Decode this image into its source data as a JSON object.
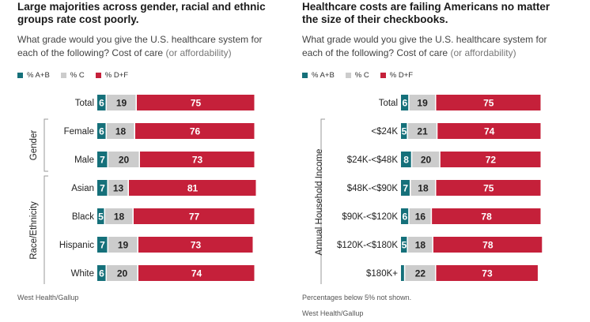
{
  "colors": {
    "ab": "#15707a",
    "c": "#cccccc",
    "df": "#c5203a"
  },
  "left": {
    "title": "Large majorities across gender, racial and ethnic groups rate cost poorly.",
    "subtitle_main": "What grade would you give the U.S. healthcare system for each of the following? Cost of care",
    "subtitle_paren": "(or affordability)",
    "legend": [
      {
        "label": "% A+B",
        "color": "#15707a"
      },
      {
        "label": "% C",
        "color": "#cccccc"
      },
      {
        "label": "% D+F",
        "color": "#c5203a"
      }
    ],
    "source": "West Health/Gallup"
  },
  "right": {
    "title": "Healthcare costs are failing Americans no matter the size of their checkbooks.",
    "subtitle_main": "What grade would you give the U.S. healthcare system for each of the following? Cost of care",
    "subtitle_paren": "(or affordability)",
    "legend": [
      {
        "label": "% A+B",
        "color": "#15707a"
      },
      {
        "label": "% C",
        "color": "#cccccc"
      },
      {
        "label": "% D+F",
        "color": "#c5203a"
      }
    ],
    "note": "Percentages below 5% not shown.",
    "source": "West Health/Gallup"
  },
  "chart_data": [
    {
      "type": "bar",
      "orientation": "horizontal",
      "stacked": true,
      "categories": [
        "Total",
        "Female",
        "Male",
        "Asian",
        "Black",
        "Hispanic",
        "White"
      ],
      "groups": [
        {
          "name": "Gender",
          "categories": [
            "Female",
            "Male"
          ]
        },
        {
          "name": "Race/Ethnicity",
          "categories": [
            "Asian",
            "Black",
            "Hispanic",
            "White"
          ]
        }
      ],
      "series": [
        {
          "name": "% A+B",
          "values": [
            6,
            6,
            7,
            7,
            5,
            7,
            6
          ]
        },
        {
          "name": "% C",
          "values": [
            19,
            18,
            20,
            13,
            18,
            19,
            20
          ]
        },
        {
          "name": "% D+F",
          "values": [
            75,
            76,
            73,
            81,
            77,
            73,
            74
          ]
        }
      ],
      "xlim": [
        0,
        100
      ]
    },
    {
      "type": "bar",
      "orientation": "horizontal",
      "stacked": true,
      "categories": [
        "Total",
        "<$24K",
        "$24K-<$48K",
        "$48K-<$90K",
        "$90K-<$120K",
        "$120K-<$180K",
        "$180K+"
      ],
      "groups": [
        {
          "name": "Annual Household Income",
          "categories": [
            "<$24K",
            "$24K-<$48K",
            "$48K-<$90K",
            "$90K-<$120K",
            "$120K-<$180K",
            "$180K+"
          ]
        }
      ],
      "series": [
        {
          "name": "% A+B",
          "values": [
            6,
            5,
            8,
            7,
            6,
            5,
            3
          ],
          "labels": [
            "6",
            "5",
            "8",
            "7",
            "6",
            "5",
            ""
          ]
        },
        {
          "name": "% C",
          "values": [
            19,
            21,
            20,
            18,
            16,
            18,
            22
          ]
        },
        {
          "name": "% D+F",
          "values": [
            75,
            74,
            72,
            75,
            78,
            78,
            73
          ]
        }
      ],
      "xlim": [
        0,
        100
      ]
    }
  ]
}
